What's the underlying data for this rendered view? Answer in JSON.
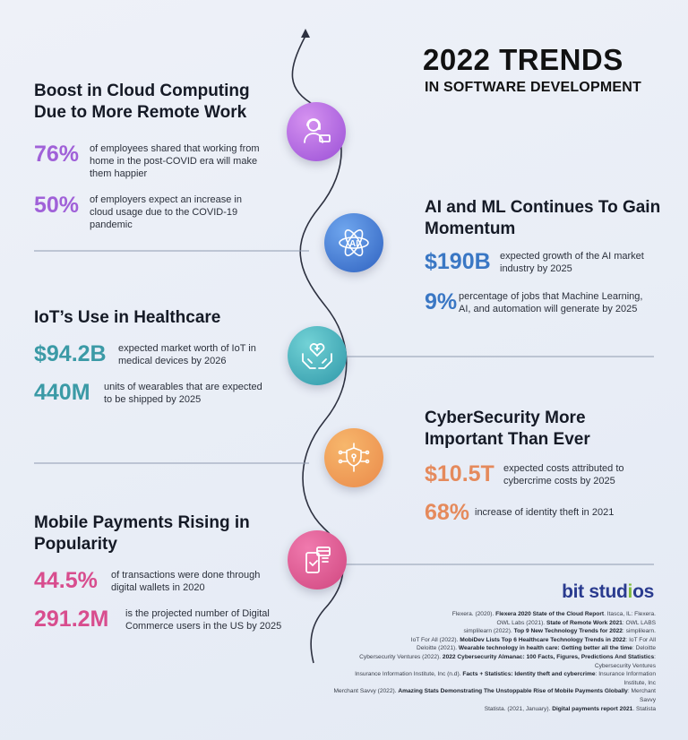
{
  "header": {
    "title": "2022 TRENDS",
    "subtitle": "IN SOFTWARE DEVELOPMENT"
  },
  "colors": {
    "cloud": "#a061d8",
    "ai": "#3a77c4",
    "iot": "#3b9aa6",
    "cyber": "#e58a5c",
    "mobile": "#d84d8e",
    "logo_blue": "#2a3b8f",
    "logo_green": "#7fba3a"
  },
  "sections": [
    {
      "heading": "Boost in Cloud Computing Due to More Remote Work",
      "icon": "remote-worker-icon",
      "stats": [
        {
          "value": "76%",
          "text": "of employees shared that working from home in the post-COVID era will make them happier"
        },
        {
          "value": "50%",
          "text": "of employers expect an increase in cloud usage due to the COVID-19 pandemic"
        }
      ]
    },
    {
      "heading": "AI and ML Continues To Gain Momentum",
      "icon": "ai-atom-icon",
      "stats": [
        {
          "value": "$190B",
          "text": "expected growth of the AI market industry by 2025"
        },
        {
          "value": "9%",
          "text": "percentage of jobs that Machine Learning, AI, and automation will generate by 2025"
        }
      ]
    },
    {
      "heading": "IoT’s Use in Healthcare",
      "icon": "hands-heart-icon",
      "stats": [
        {
          "value": "$94.2B",
          "text": "expected market worth of IoT in medical devices by 2026"
        },
        {
          "value": "440M",
          "text": "units of wearables that are expected to be shipped by 2025"
        }
      ]
    },
    {
      "heading": "CyberSecurity More Important Than Ever",
      "icon": "shield-circuit-icon",
      "stats": [
        {
          "value": "$10.5T",
          "text": "expected costs attributed to cybercrime costs by 2025"
        },
        {
          "value": "68%",
          "text": "increase of identity theft in 2021"
        }
      ]
    },
    {
      "heading": "Mobile Payments Rising in Popularity",
      "icon": "phone-payment-icon",
      "stats": [
        {
          "value": "44.5%",
          "text": "of transactions were done through digital wallets in 2020"
        },
        {
          "value": "291.2M",
          "text": "is the projected number of Digital Commerce users in the US by 2025"
        }
      ]
    }
  ],
  "logo": {
    "part1": "bit stud",
    "part2": "i",
    "part3": "os"
  },
  "references": [
    {
      "pre": "Flexera. (2020). ",
      "bold": "Flexera 2020 State of the Cloud Report",
      "post": ". Itasca, IL: Flexera."
    },
    {
      "pre": "OWL Labs (2021). ",
      "bold": "State of Remote Work 2021",
      "post": ": OWL LABS"
    },
    {
      "pre": "simplilearn (2022). ",
      "bold": "Top 9 New Technology Trends for 2022",
      "post": ": simplilearn."
    },
    {
      "pre": "IoT For All (2022). ",
      "bold": "MobiDev Lists Top 6 Healthcare Technology Trends in 2022",
      "post": ": IoT For All"
    },
    {
      "pre": "Deloitte (2021). ",
      "bold": "Wearable technology in health care: Getting better all the time",
      "post": ": Deloitte"
    },
    {
      "pre": "Cybersecurity Ventures (2022). ",
      "bold": "2022 Cybersecurity Almanac: 100 Facts, Figures, Predictions And Statistics",
      "post": ": Cybersecurity Ventures"
    },
    {
      "pre": "Insurance Information Institute, Inc (n.d). ",
      "bold": "Facts + Statistics: Identity theft and cybercrime",
      "post": ": Insurance Information Institute, Inc"
    },
    {
      "pre": "Merchant Savvy (2022). ",
      "bold": "Amazing Stats Demonstrating The Unstoppable Rise of Mobile Payments Globally",
      "post": ": Merchant Savvy"
    },
    {
      "pre": "Statista. (2021, January). ",
      "bold": "Digital payments report 2021",
      "post": ". Statista"
    }
  ]
}
